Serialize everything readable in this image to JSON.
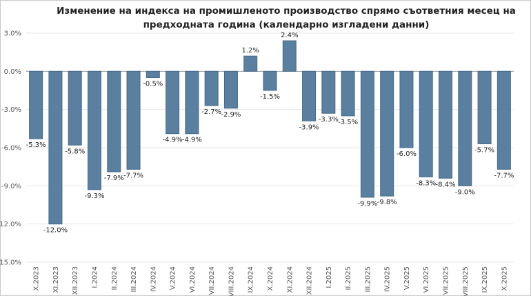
{
  "chart_data": {
    "type": "bar",
    "title": "Изменение на индекса на промишленото производство спрямо съответния месец на предходната година (календарно изгладени данни)",
    "categories": [
      "X.2023",
      "XI.2023",
      "XII.2023",
      "I.2024",
      "II.2024",
      "III.2024",
      "IV.2024",
      "V.2024",
      "VI.2024",
      "VII.2024",
      "VIII.2024",
      "IX.2024",
      "X.2024",
      "XI.2024",
      "XII.2024",
      "I.2025",
      "II.2025",
      "III.2025",
      "IV.2025",
      "V.2025",
      "VI.2025",
      "VII.2025",
      "VIII.2025",
      "IX.2025",
      "X.2025"
    ],
    "values": [
      -5.3,
      -12.0,
      -5.8,
      -9.3,
      -7.9,
      -7.7,
      -0.5,
      -4.9,
      -4.9,
      -2.7,
      -2.9,
      1.2,
      -1.5,
      2.4,
      -3.9,
      -3.3,
      -3.5,
      -9.9,
      -9.8,
      -6.0,
      -8.3,
      -8.4,
      -9.0,
      -5.7,
      -7.7
    ],
    "ylim": [
      -15,
      3
    ],
    "yticks": [
      3,
      0,
      -3,
      -6,
      -9,
      -12,
      -15
    ],
    "ytick_labels": [
      "3.0%",
      "0.0%",
      "-3.0%",
      "-6.0%",
      "-9.0%",
      "-12.0%",
      "-15.0%"
    ],
    "xlabel": "",
    "ylabel": "",
    "grid": true,
    "legend": "none",
    "colors": {
      "bar": "#5b7f9e",
      "bar_edge": "#456a8a",
      "grid": "#e6e6e6"
    }
  }
}
